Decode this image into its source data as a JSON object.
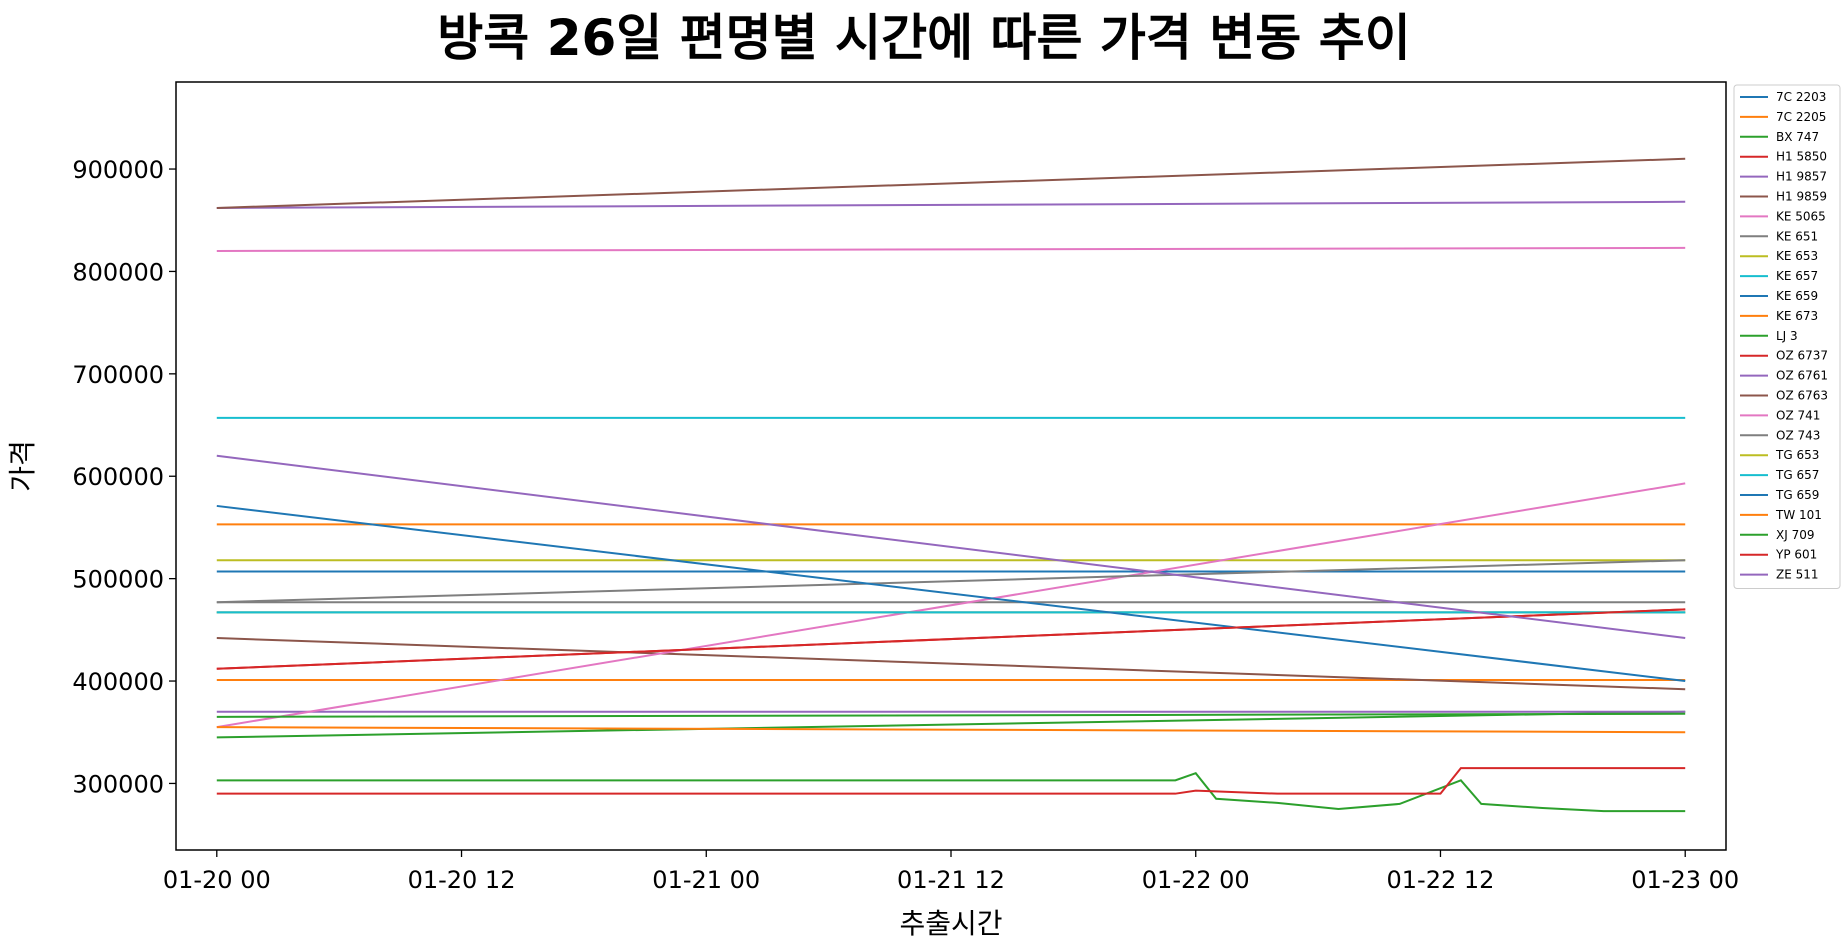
{
  "chart_data": {
    "type": "line",
    "title": "방콕 26일 편명별 시간에 따른 가격 변동 추이",
    "xlabel": "추출시간",
    "ylabel": "가격",
    "xlim": [
      -2,
      74
    ],
    "ylim": [
      235000,
      985000
    ],
    "xticks": [
      0,
      12,
      24,
      36,
      48,
      60,
      72
    ],
    "xtick_labels": [
      "01-20 00",
      "01-20 12",
      "01-21 00",
      "01-21 12",
      "01-22 00",
      "01-22 12",
      "01-23 00"
    ],
    "yticks": [
      300000,
      400000,
      500000,
      600000,
      700000,
      800000,
      900000
    ],
    "ytick_labels": [
      "300000",
      "400000",
      "500000",
      "600000",
      "700000",
      "800000",
      "900000"
    ],
    "grid": false,
    "legend_position": "outside-right",
    "x_unit_note": "hours from 01-20 00:00",
    "series": [
      {
        "name": "7C 2203",
        "color": "#1f77b4",
        "points": [
          [
            0,
            507000
          ],
          [
            72,
            507000
          ]
        ]
      },
      {
        "name": "7C 2205",
        "color": "#ff7f0e",
        "points": [
          [
            0,
            553000
          ],
          [
            72,
            553000
          ]
        ]
      },
      {
        "name": "BX 747",
        "color": "#2ca02c",
        "points": [
          [
            0,
            303000
          ],
          [
            47,
            303000
          ],
          [
            48,
            310000
          ],
          [
            49,
            285000
          ],
          [
            52,
            281000
          ],
          [
            55,
            275000
          ],
          [
            58,
            280000
          ],
          [
            61,
            303000
          ],
          [
            62,
            280000
          ],
          [
            65,
            276000
          ],
          [
            68,
            273000
          ],
          [
            72,
            273000
          ]
        ]
      },
      {
        "name": "H1 5850",
        "color": "#d62728",
        "points": [
          [
            0,
            290000
          ],
          [
            47,
            290000
          ],
          [
            48,
            293000
          ],
          [
            52,
            290000
          ],
          [
            60,
            290000
          ],
          [
            61,
            315000
          ],
          [
            72,
            315000
          ]
        ]
      },
      {
        "name": "H1 9857",
        "color": "#9467bd",
        "points": [
          [
            0,
            862000
          ],
          [
            72,
            868000
          ]
        ]
      },
      {
        "name": "H1 9859",
        "color": "#8c564b",
        "points": [
          [
            0,
            862000
          ],
          [
            72,
            910000
          ]
        ]
      },
      {
        "name": "KE 5065",
        "color": "#e377c2",
        "points": [
          [
            0,
            820000
          ],
          [
            72,
            823000
          ]
        ]
      },
      {
        "name": "KE 651",
        "color": "#7f7f7f",
        "points": [
          [
            0,
            477000
          ],
          [
            72,
            477000
          ]
        ]
      },
      {
        "name": "KE 653",
        "color": "#bcbd22",
        "points": [
          [
            0,
            518000
          ],
          [
            72,
            518000
          ]
        ]
      },
      {
        "name": "KE 657",
        "color": "#17becf",
        "points": [
          [
            0,
            657000
          ],
          [
            72,
            657000
          ]
        ]
      },
      {
        "name": "KE 659",
        "color": "#1f77b4",
        "points": [
          [
            0,
            467000
          ],
          [
            72,
            467000
          ]
        ]
      },
      {
        "name": "KE 673",
        "color": "#ff7f0e",
        "points": [
          [
            0,
            401000
          ],
          [
            72,
            401000
          ]
        ]
      },
      {
        "name": "LJ 3",
        "color": "#2ca02c",
        "points": [
          [
            0,
            345000
          ],
          [
            72,
            370000
          ]
        ]
      },
      {
        "name": "OZ 6737",
        "color": "#d62728",
        "points": [
          [
            0,
            412000
          ],
          [
            72,
            470000
          ]
        ]
      },
      {
        "name": "OZ 6761",
        "color": "#9467bd",
        "points": [
          [
            0,
            370000
          ],
          [
            72,
            370000
          ]
        ]
      },
      {
        "name": "OZ 6763",
        "color": "#8c564b",
        "points": [
          [
            0,
            442000
          ],
          [
            72,
            392000
          ]
        ]
      },
      {
        "name": "OZ 741",
        "color": "#e377c2",
        "points": [
          [
            0,
            355000
          ],
          [
            72,
            593000
          ]
        ]
      },
      {
        "name": "OZ 743",
        "color": "#7f7f7f",
        "points": [
          [
            0,
            477000
          ],
          [
            72,
            518000
          ]
        ]
      },
      {
        "name": "TG 653",
        "color": "#bcbd22",
        "points": [
          [
            0,
            467000
          ],
          [
            72,
            467000
          ]
        ]
      },
      {
        "name": "TG 657",
        "color": "#17becf",
        "points": [
          [
            0,
            467000
          ],
          [
            72,
            467000
          ]
        ]
      },
      {
        "name": "TG 659",
        "color": "#1f77b4",
        "points": [
          [
            0,
            571000
          ],
          [
            72,
            400000
          ]
        ]
      },
      {
        "name": "TW 101",
        "color": "#ff7f0e",
        "points": [
          [
            0,
            355000
          ],
          [
            72,
            350000
          ]
        ]
      },
      {
        "name": "XJ 709",
        "color": "#2ca02c",
        "points": [
          [
            0,
            365000
          ],
          [
            72,
            368000
          ]
        ]
      },
      {
        "name": "YP 601",
        "color": "#d62728",
        "points": [
          [
            0,
            412000
          ],
          [
            72,
            470000
          ]
        ]
      },
      {
        "name": "ZE 511",
        "color": "#9467bd",
        "points": [
          [
            0,
            620000
          ],
          [
            72,
            442000
          ]
        ]
      }
    ]
  }
}
